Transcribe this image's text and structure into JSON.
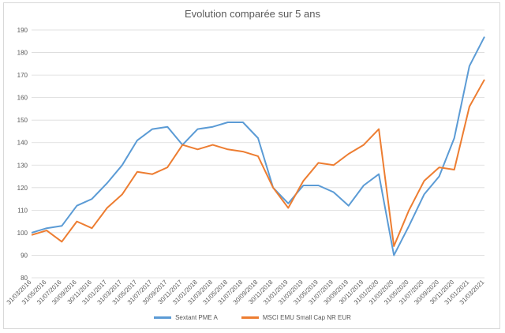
{
  "chart_data": {
    "type": "line",
    "title": "Evolution comparée sur 5 ans",
    "xlabel": "",
    "ylabel": "",
    "ylim": [
      80,
      190
    ],
    "yticks": [
      80,
      90,
      100,
      110,
      120,
      130,
      140,
      150,
      160,
      170,
      180,
      190
    ],
    "x": [
      "31/03/2016",
      "31/05/2016",
      "31/07/2016",
      "30/09/2016",
      "30/11/2016",
      "31/01/2017",
      "31/03/2017",
      "31/05/2017",
      "31/07/2017",
      "30/09/2017",
      "30/11/2017",
      "31/01/2018",
      "31/03/2018",
      "31/05/2018",
      "31/07/2018",
      "30/09/2018",
      "30/11/2018",
      "31/01/2019",
      "31/03/2019",
      "31/05/2019",
      "31/07/2019",
      "30/09/2019",
      "30/11/2019",
      "31/01/2020",
      "31/03/2020",
      "31/05/2020",
      "31/07/2020",
      "30/09/2020",
      "30/11/2020",
      "31/01/2021",
      "31/03/2021"
    ],
    "grid": true,
    "legend_position": "bottom",
    "series": [
      {
        "name": "Sextant PME A",
        "color": "#5b9bd5",
        "values": [
          100,
          102,
          103,
          112,
          115,
          122,
          130,
          141,
          146,
          147,
          139,
          146,
          147,
          149,
          149,
          142,
          120,
          113,
          121,
          121,
          118,
          112,
          121,
          126,
          90,
          103,
          117,
          125,
          142,
          174,
          187
        ]
      },
      {
        "name": "MSCI EMU Small Cap NR EUR",
        "color": "#ed7d31",
        "values": [
          99,
          101,
          96,
          105,
          102,
          111,
          117,
          127,
          126,
          129,
          139,
          137,
          139,
          137,
          136,
          134,
          120,
          111,
          123,
          131,
          130,
          135,
          139,
          146,
          94,
          110,
          123,
          129,
          128,
          156,
          168
        ]
      }
    ]
  }
}
